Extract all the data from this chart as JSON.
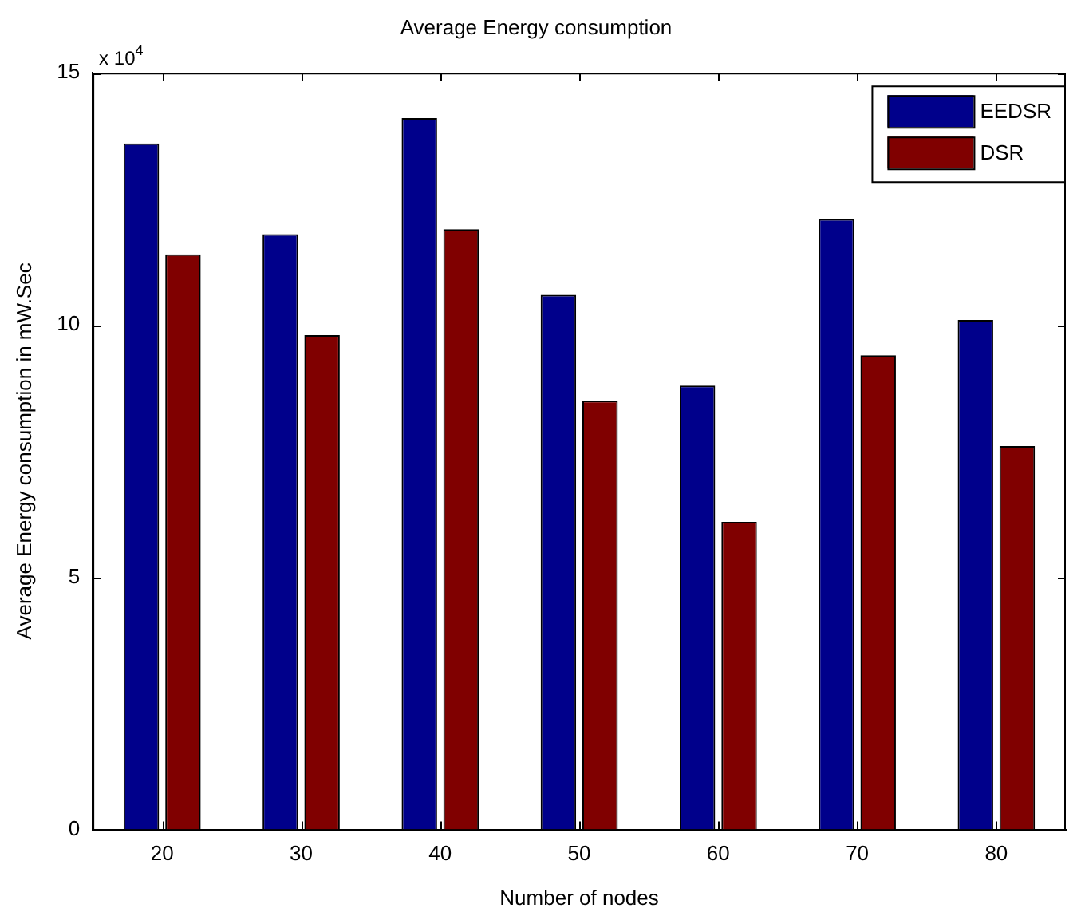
{
  "chart_data": {
    "type": "bar",
    "title": "Average Energy consumption",
    "xlabel": "Number of nodes",
    "ylabel": "Average Energy consumption in mW.Sec",
    "categories": [
      "20",
      "30",
      "40",
      "50",
      "60",
      "70",
      "80"
    ],
    "series": [
      {
        "name": "EEDSR",
        "color": "#00008b",
        "values": [
          13.6,
          11.8,
          14.1,
          10.6,
          8.8,
          12.1,
          10.1
        ]
      },
      {
        "name": "DSR",
        "color": "#800000",
        "values": [
          11.4,
          9.8,
          11.9,
          8.5,
          6.1,
          9.4,
          7.6
        ]
      }
    ],
    "ylim": [
      0,
      15
    ],
    "yticks": [
      0,
      5,
      10,
      15
    ],
    "grid": false,
    "legend": "top right",
    "annotations": [
      "x 10$^{4}$"
    ]
  }
}
